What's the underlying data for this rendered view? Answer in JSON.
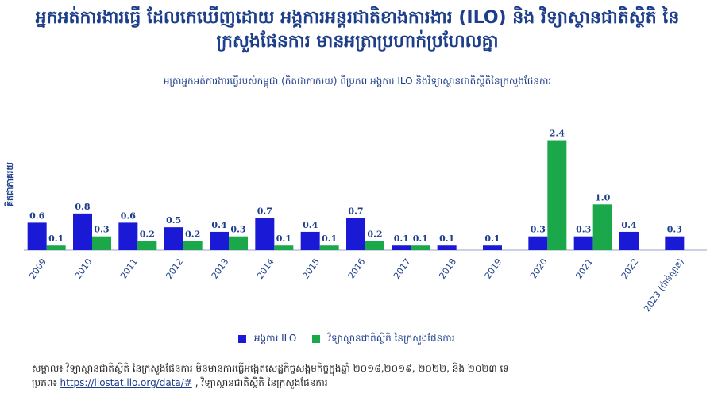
{
  "headline": {
    "line1": "អ្នកអត់ការងារធ្វើ ដែលកេឃើញដោយ អង្គការអន្តរជាតិខាងការងារ (ILO) និង វិទ្យាស្ថានជាតិស្ថិតិ នៃ",
    "line2": "ក្រសួងផែនការ មានអត្រាប្រហាក់ប្រហែលគ្នា"
  },
  "chart_data": {
    "type": "bar",
    "title": "អត្រាអ្នកអត់ការងារធ្វើរបស់កម្ពុជា (គិតជាភាគរយ) ពីប្រភព អង្គការ ILO និងវិទ្យាស្ថានជាតិស្ថិតិនៃក្រសួងផែនការ",
    "ylabel": "គិតជាភាគរយ",
    "categories": [
      "2009",
      "2010",
      "2011",
      "2012",
      "2013",
      "2014",
      "2015",
      "2016",
      "2017",
      "2018",
      "2019",
      "2020",
      "2021",
      "2022",
      "2023 (ប៉ាន់ស្មាន)"
    ],
    "ylim": [
      0,
      2.6
    ],
    "series": [
      {
        "name": "អង្គការ ILO",
        "color": "#1a1ad6",
        "values": [
          0.6,
          0.8,
          0.6,
          0.5,
          0.4,
          0.7,
          0.4,
          0.7,
          0.1,
          0.1,
          0.1,
          0.3,
          0.3,
          0.4,
          0.3
        ]
      },
      {
        "name": "វិទ្យាស្ថានជាតិស្ថិតិ នៃក្រសួងផែនការ",
        "color": "#1aa84a",
        "values": [
          0.1,
          0.3,
          0.2,
          0.2,
          0.3,
          0.1,
          0.1,
          0.2,
          0.1,
          null,
          null,
          2.4,
          1.0,
          null,
          null
        ]
      }
    ]
  },
  "note": {
    "label": "សម្គាល់៖",
    "text": "វិទ្យាស្ថានជាតិស្ថិតិ នៃក្រសួងផែនការ មិនមានការធ្វើអង្កេតសេដ្ឋកិច្ចសង្គមកិច្ចក្នុងឆ្នាំ ២០១៨,២០១៩, ២០២២, និង ២០២៣ ទេ",
    "source_label": "ប្រភព៖",
    "source_link": "https://ilostat.ilo.org/data/#",
    "source_rest": ", វិទ្យាស្ថានជាតិស្ថិតិ នៃក្រសួងផែនការ"
  }
}
